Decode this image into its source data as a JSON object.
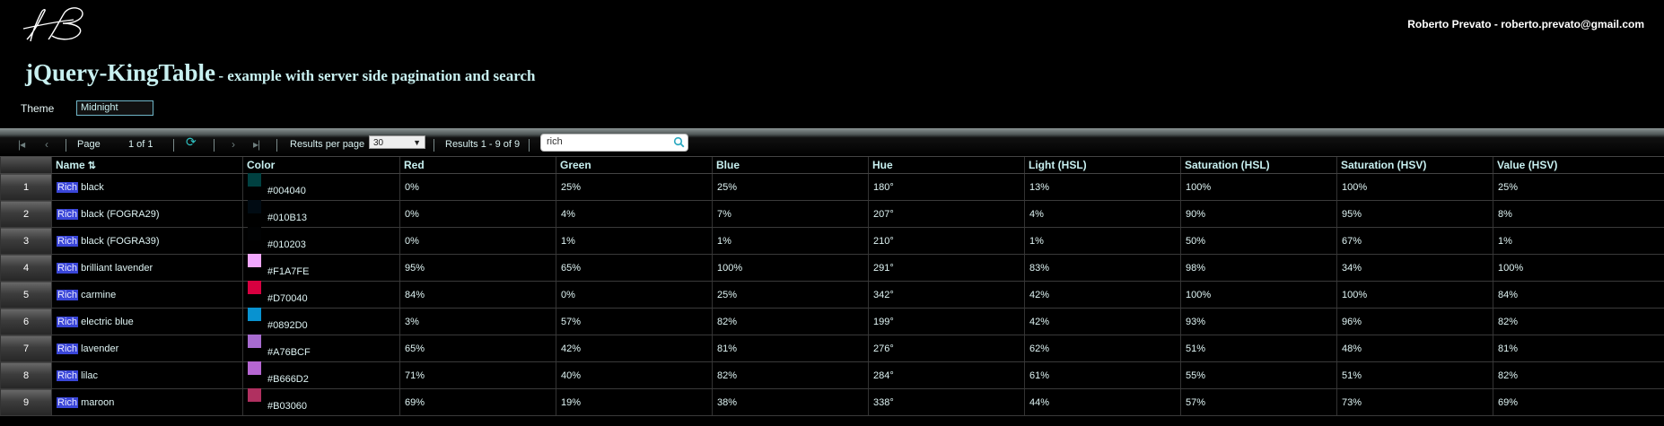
{
  "header": {
    "user": "Roberto Prevato - roberto.prevato@gmail.com",
    "title": "jQuery-KingTable",
    "subtitle": "- example with server side pagination and search"
  },
  "theme": {
    "label": "Theme",
    "value": "Midnight"
  },
  "toolbar": {
    "page_label": "Page",
    "page_value": "1 of 1",
    "results_per_page_label": "Results per page",
    "results_per_page_value": "30",
    "results_info": "Results 1 - 9 of 9",
    "search_value": "rich"
  },
  "columns": [
    "Name",
    "Color",
    "Red",
    "Green",
    "Blue",
    "Hue",
    "Light (HSL)",
    "Saturation (HSL)",
    "Saturation (HSV)",
    "Value (HSV)"
  ],
  "highlight_term": "Rich",
  "rows": [
    {
      "n": "1",
      "rest": "black",
      "hex": "#004040",
      "color": "#004040",
      "red": "0%",
      "green": "25%",
      "blue": "25%",
      "hue": "180°",
      "light": "13%",
      "sat_hsl": "100%",
      "sat_hsv": "100%",
      "val": "25%"
    },
    {
      "n": "2",
      "rest": "black (FOGRA29)",
      "hex": "#010B13",
      "color": "#010B13",
      "red": "0%",
      "green": "4%",
      "blue": "7%",
      "hue": "207°",
      "light": "4%",
      "sat_hsl": "90%",
      "sat_hsv": "95%",
      "val": "8%"
    },
    {
      "n": "3",
      "rest": "black (FOGRA39)",
      "hex": "#010203",
      "color": "#010203",
      "red": "0%",
      "green": "1%",
      "blue": "1%",
      "hue": "210°",
      "light": "1%",
      "sat_hsl": "50%",
      "sat_hsv": "67%",
      "val": "1%"
    },
    {
      "n": "4",
      "rest": "brilliant lavender",
      "hex": "#F1A7FE",
      "color": "#F1A7FE",
      "red": "95%",
      "green": "65%",
      "blue": "100%",
      "hue": "291°",
      "light": "83%",
      "sat_hsl": "98%",
      "sat_hsv": "34%",
      "val": "100%"
    },
    {
      "n": "5",
      "rest": "carmine",
      "hex": "#D70040",
      "color": "#D70040",
      "red": "84%",
      "green": "0%",
      "blue": "25%",
      "hue": "342°",
      "light": "42%",
      "sat_hsl": "100%",
      "sat_hsv": "100%",
      "val": "84%"
    },
    {
      "n": "6",
      "rest": "electric blue",
      "hex": "#0892D0",
      "color": "#0892D0",
      "red": "3%",
      "green": "57%",
      "blue": "82%",
      "hue": "199°",
      "light": "42%",
      "sat_hsl": "93%",
      "sat_hsv": "96%",
      "val": "82%"
    },
    {
      "n": "7",
      "rest": "lavender",
      "hex": "#A76BCF",
      "color": "#A76BCF",
      "red": "65%",
      "green": "42%",
      "blue": "81%",
      "hue": "276°",
      "light": "62%",
      "sat_hsl": "51%",
      "sat_hsv": "48%",
      "val": "81%"
    },
    {
      "n": "8",
      "rest": "lilac",
      "hex": "#B666D2",
      "color": "#B666D2",
      "red": "71%",
      "green": "40%",
      "blue": "82%",
      "hue": "284°",
      "light": "61%",
      "sat_hsl": "55%",
      "sat_hsv": "51%",
      "val": "82%"
    },
    {
      "n": "9",
      "rest": "maroon",
      "hex": "#B03060",
      "color": "#B03060",
      "red": "69%",
      "green": "19%",
      "blue": "38%",
      "hue": "338°",
      "light": "44%",
      "sat_hsl": "57%",
      "sat_hsv": "73%",
      "val": "69%"
    }
  ]
}
